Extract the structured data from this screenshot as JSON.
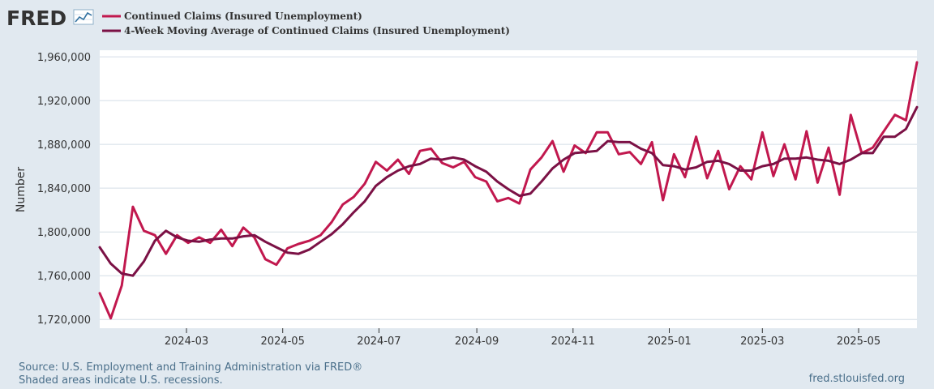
{
  "brand": {
    "name": "FRED",
    "icon": "line-chart-icon"
  },
  "chart_data": {
    "type": "line",
    "title": "",
    "xlabel": "",
    "ylabel": "Number",
    "ylim": [
      1712000,
      1966000
    ],
    "yticks": [
      1720000,
      1760000,
      1800000,
      1840000,
      1880000,
      1920000,
      1960000
    ],
    "ytick_labels": [
      "1,720,000",
      "1,760,000",
      "1,800,000",
      "1,840,000",
      "1,880,000",
      "1,920,000",
      "1,960,000"
    ],
    "x_start": "2024-01-06",
    "x_end": "2025-05-24",
    "xticks": [
      "2024-03",
      "2024-05",
      "2024-07",
      "2024-09",
      "2024-11",
      "2025-01",
      "2025-03",
      "2025-05"
    ],
    "xtick_days": [
      55,
      116,
      177,
      239,
      300,
      361,
      420,
      481
    ],
    "grid": true,
    "legend_position": "top-left",
    "series": [
      {
        "name": "Continued Claims (Insured Unemployment)",
        "color": "#c1184e",
        "values": [
          1744000,
          1721000,
          1751000,
          1823000,
          1801000,
          1797000,
          1780000,
          1797000,
          1790000,
          1795000,
          1790000,
          1802000,
          1787000,
          1804000,
          1795000,
          1775000,
          1770000,
          1785000,
          1789000,
          1792000,
          1797000,
          1809000,
          1825000,
          1832000,
          1844000,
          1864000,
          1856000,
          1866000,
          1853000,
          1874000,
          1876000,
          1863000,
          1859000,
          1864000,
          1850000,
          1846000,
          1828000,
          1831000,
          1826000,
          1857000,
          1868000,
          1883000,
          1855000,
          1879000,
          1872000,
          1891000,
          1891000,
          1871000,
          1873000,
          1862000,
          1882000,
          1829000,
          1871000,
          1850000,
          1887000,
          1849000,
          1874000,
          1839000,
          1860000,
          1848000,
          1891000,
          1851000,
          1880000,
          1848000,
          1892000,
          1845000,
          1877000,
          1834000,
          1907000,
          1872000,
          1877000,
          1892000,
          1907000,
          1902000,
          1955000
        ]
      },
      {
        "name": "4-Week Moving Average of Continued Claims (Insured Unemployment)",
        "color": "#7b1145",
        "values": [
          1786000,
          1771000,
          1762000,
          1760000,
          1773000,
          1792000,
          1801000,
          1795000,
          1792000,
          1791000,
          1793000,
          1794000,
          1794000,
          1796000,
          1797000,
          1791000,
          1786000,
          1781000,
          1780000,
          1784000,
          1791000,
          1798000,
          1807000,
          1818000,
          1828000,
          1842000,
          1850000,
          1856000,
          1860000,
          1862000,
          1867000,
          1866000,
          1868000,
          1866000,
          1860000,
          1855000,
          1846000,
          1839000,
          1833000,
          1835000,
          1846000,
          1858000,
          1866000,
          1872000,
          1873000,
          1874000,
          1883000,
          1882000,
          1882000,
          1876000,
          1872000,
          1861000,
          1860000,
          1857000,
          1859000,
          1864000,
          1865000,
          1862000,
          1856000,
          1856000,
          1860000,
          1862000,
          1867000,
          1867000,
          1868000,
          1866000,
          1865000,
          1862000,
          1866000,
          1872000,
          1872000,
          1887000,
          1887000,
          1894000,
          1914000
        ]
      }
    ]
  },
  "footer": {
    "source": "Source: U.S. Employment and Training Administration via FRED®",
    "recessions_note": "Shaded areas indicate U.S. recessions.",
    "site": "fred.stlouisfed.org"
  }
}
